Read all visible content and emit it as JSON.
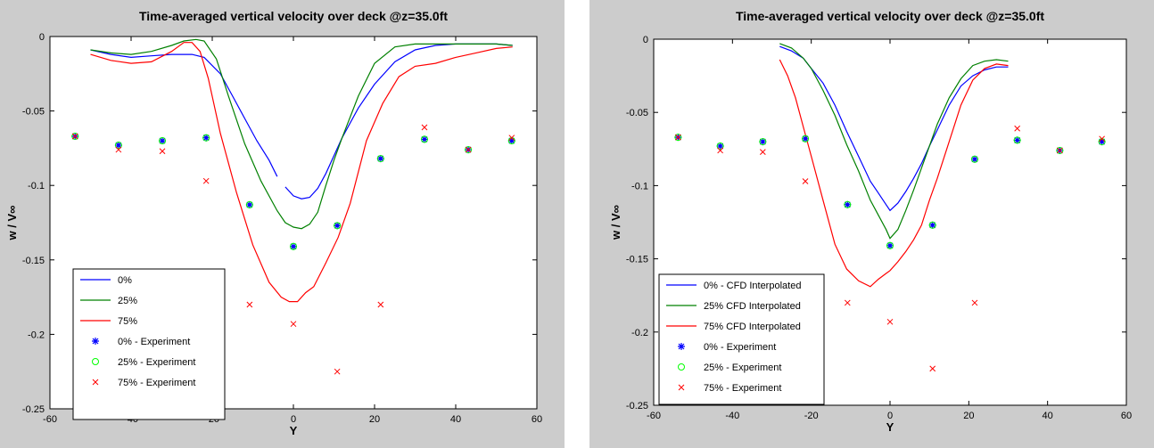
{
  "chart_data": [
    {
      "type": "line",
      "title": "Time-averaged vertical velocity over deck @z=35.0ft",
      "xlabel": "Y",
      "ylabel": "w / V∞",
      "xlim": [
        -60,
        60
      ],
      "ylim": [
        -0.25,
        0
      ],
      "xticks": [
        "-60",
        "-40",
        "-20",
        "0",
        "20",
        "40",
        "60"
      ],
      "yticks": [
        "0",
        "-0.05",
        "-0.1",
        "-0.15",
        "-0.2",
        "-0.25"
      ],
      "grid": false,
      "legend_position": "bottom-left",
      "series": [
        {
          "name": "0%",
          "kind": "line",
          "color": "#0000ff",
          "x": [
            -50,
            -45,
            -40,
            -35,
            -30,
            -25,
            -22,
            -18,
            -15,
            -12,
            -9,
            -6,
            -4
          ],
          "y": [
            -0.009,
            -0.012,
            -0.014,
            -0.013,
            -0.012,
            -0.012,
            -0.014,
            -0.025,
            -0.04,
            -0.055,
            -0.07,
            -0.083,
            -0.094
          ]
        },
        {
          "name": "0%",
          "kind": "line",
          "color": "#0000ff",
          "x": [
            -2,
            0,
            2,
            4,
            6,
            8,
            10,
            12,
            16,
            20,
            25,
            30,
            35,
            40,
            45,
            50,
            54
          ],
          "y": [
            -0.101,
            -0.107,
            -0.109,
            -0.108,
            -0.102,
            -0.092,
            -0.08,
            -0.068,
            -0.048,
            -0.032,
            -0.017,
            -0.009,
            -0.006,
            -0.005,
            -0.005,
            -0.005,
            -0.006
          ]
        },
        {
          "name": "25%",
          "kind": "line",
          "color": "#008000",
          "x": [
            -50,
            -45,
            -40,
            -35,
            -30,
            -27,
            -24,
            -22,
            -19,
            -16,
            -12,
            -8,
            -4,
            -2,
            0,
            2,
            4,
            6,
            8,
            10,
            12,
            16,
            20,
            25,
            30,
            35,
            40,
            45,
            50,
            54
          ],
          "y": [
            -0.009,
            -0.011,
            -0.012,
            -0.01,
            -0.006,
            -0.003,
            -0.002,
            -0.003,
            -0.015,
            -0.04,
            -0.072,
            -0.097,
            -0.117,
            -0.125,
            -0.128,
            -0.129,
            -0.126,
            -0.118,
            -0.1,
            -0.083,
            -0.068,
            -0.04,
            -0.018,
            -0.007,
            -0.005,
            -0.005,
            -0.005,
            -0.005,
            -0.005,
            -0.006
          ]
        },
        {
          "name": "75%",
          "kind": "line",
          "color": "#ff0000",
          "x": [
            -50,
            -45,
            -40,
            -35,
            -30,
            -27,
            -25,
            -23,
            -21,
            -18,
            -14,
            -10,
            -6,
            -3,
            -1,
            1,
            3,
            5,
            8,
            11,
            14,
            18,
            22,
            26,
            30,
            35,
            40,
            45,
            50,
            54
          ],
          "y": [
            -0.012,
            -0.016,
            -0.018,
            -0.017,
            -0.01,
            -0.004,
            -0.004,
            -0.01,
            -0.028,
            -0.065,
            -0.105,
            -0.14,
            -0.165,
            -0.175,
            -0.178,
            -0.178,
            -0.172,
            -0.168,
            -0.152,
            -0.135,
            -0.112,
            -0.07,
            -0.045,
            -0.027,
            -0.02,
            -0.018,
            -0.014,
            -0.011,
            -0.008,
            -0.007
          ]
        },
        {
          "name": "0% - Experiment",
          "kind": "scatter",
          "marker": "asterisk",
          "color": "#0000ff",
          "x": [
            -53.8,
            -43.1,
            -32.3,
            -21.5,
            -10.8,
            0,
            10.8,
            21.5,
            32.3,
            43.1,
            53.8
          ],
          "y": [
            -0.067,
            -0.073,
            -0.07,
            -0.068,
            -0.113,
            -0.141,
            -0.127,
            -0.082,
            -0.069,
            -0.076,
            -0.07
          ]
        },
        {
          "name": "25% - Experiment",
          "kind": "scatter",
          "marker": "circle",
          "color": "#00ff00",
          "x": [
            -53.8,
            -43.1,
            -32.3,
            -21.5,
            -10.8,
            0,
            10.8,
            21.5,
            32.3,
            43.1,
            53.8
          ],
          "y": [
            -0.067,
            -0.073,
            -0.07,
            -0.068,
            -0.113,
            -0.141,
            -0.127,
            -0.082,
            -0.069,
            -0.076,
            -0.07
          ]
        },
        {
          "name": "75% - Experiment",
          "kind": "scatter",
          "marker": "cross",
          "color": "#ff0000",
          "x": [
            -53.8,
            -43.1,
            -32.3,
            -21.5,
            -10.8,
            0,
            10.8,
            21.5,
            32.3,
            43.1,
            53.8
          ],
          "y": [
            -0.067,
            -0.076,
            -0.077,
            -0.097,
            -0.18,
            -0.193,
            -0.225,
            -0.18,
            -0.061,
            -0.076,
            -0.068
          ]
        }
      ]
    },
    {
      "type": "line",
      "title": "Time-averaged vertical velocity over deck @z=35.0ft",
      "xlabel": "Y",
      "ylabel": "w / V∞",
      "xlim": [
        -60,
        60
      ],
      "ylim": [
        -0.25,
        0
      ],
      "xticks": [
        "-60",
        "-40",
        "-20",
        "0",
        "20",
        "40",
        "60"
      ],
      "yticks": [
        "0",
        "-0.05",
        "-0.1",
        "-0.15",
        "-0.2",
        "-0.25"
      ],
      "grid": false,
      "legend_position": "bottom-left",
      "series": [
        {
          "name": "0% - CFD Interpolated",
          "kind": "line",
          "color": "#0000ff",
          "x": [
            -28,
            -25,
            -22,
            -20,
            -17,
            -14,
            -11,
            -8,
            -5,
            -3,
            -1,
            0,
            2,
            4,
            6,
            8,
            10,
            12,
            15,
            18,
            21,
            24,
            27,
            30
          ],
          "y": [
            -0.005,
            -0.008,
            -0.013,
            -0.02,
            -0.03,
            -0.045,
            -0.063,
            -0.08,
            -0.097,
            -0.105,
            -0.113,
            -0.117,
            -0.112,
            -0.104,
            -0.095,
            -0.085,
            -0.073,
            -0.062,
            -0.045,
            -0.032,
            -0.025,
            -0.021,
            -0.019,
            -0.019
          ]
        },
        {
          "name": "25% CFD Interpolated",
          "kind": "line",
          "color": "#008000",
          "x": [
            -28,
            -25,
            -22,
            -20,
            -17,
            -14,
            -11,
            -8,
            -5,
            -3,
            -1,
            0,
            2,
            4,
            6,
            8,
            10,
            12,
            15,
            18,
            21,
            24,
            27,
            30
          ],
          "y": [
            -0.003,
            -0.006,
            -0.013,
            -0.02,
            -0.035,
            -0.052,
            -0.072,
            -0.09,
            -0.11,
            -0.12,
            -0.13,
            -0.136,
            -0.13,
            -0.117,
            -0.103,
            -0.088,
            -0.073,
            -0.058,
            -0.04,
            -0.027,
            -0.018,
            -0.015,
            -0.014,
            -0.015
          ]
        },
        {
          "name": "75% CFD Interpolated",
          "kind": "line",
          "color": "#ff0000",
          "x": [
            -28,
            -26,
            -24,
            -22,
            -20,
            -17,
            -14,
            -11,
            -8,
            -5,
            -3,
            -1,
            0,
            2,
            4,
            6,
            8,
            10,
            12,
            15,
            18,
            21,
            24,
            27,
            30
          ],
          "y": [
            -0.014,
            -0.025,
            -0.04,
            -0.06,
            -0.08,
            -0.11,
            -0.14,
            -0.157,
            -0.165,
            -0.169,
            -0.164,
            -0.16,
            -0.158,
            -0.152,
            -0.145,
            -0.137,
            -0.127,
            -0.11,
            -0.095,
            -0.07,
            -0.045,
            -0.028,
            -0.02,
            -0.017,
            -0.018
          ]
        },
        {
          "name": "0% - Experiment",
          "kind": "scatter",
          "marker": "asterisk",
          "color": "#0000ff",
          "x": [
            -53.8,
            -43.1,
            -32.3,
            -21.5,
            -10.8,
            0,
            10.8,
            21.5,
            32.3,
            43.1,
            53.8
          ],
          "y": [
            -0.067,
            -0.073,
            -0.07,
            -0.068,
            -0.113,
            -0.141,
            -0.127,
            -0.082,
            -0.069,
            -0.076,
            -0.07
          ]
        },
        {
          "name": "25% - Experiment",
          "kind": "scatter",
          "marker": "circle",
          "color": "#00ff00",
          "x": [
            -53.8,
            -43.1,
            -32.3,
            -21.5,
            -10.8,
            0,
            10.8,
            21.5,
            32.3,
            43.1,
            53.8
          ],
          "y": [
            -0.067,
            -0.073,
            -0.07,
            -0.068,
            -0.113,
            -0.141,
            -0.127,
            -0.082,
            -0.069,
            -0.076,
            -0.07
          ]
        },
        {
          "name": "75% - Experiment",
          "kind": "scatter",
          "marker": "cross",
          "color": "#ff0000",
          "x": [
            -53.8,
            -43.1,
            -32.3,
            -21.5,
            -10.8,
            0,
            10.8,
            21.5,
            32.3,
            43.1,
            53.8
          ],
          "y": [
            -0.067,
            -0.076,
            -0.077,
            -0.097,
            -0.18,
            -0.193,
            -0.225,
            -0.18,
            -0.061,
            -0.076,
            -0.068
          ]
        }
      ]
    }
  ]
}
